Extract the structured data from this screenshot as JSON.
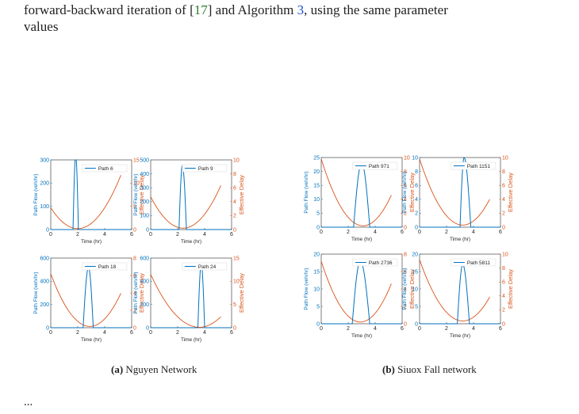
{
  "caption": {
    "line1_prefix": "forward-backward iteration of [",
    "ref": "17",
    "line1_mid": "] and Algorithm ",
    "algo_ref": "3",
    "line1_suffix": ", using the same parameter",
    "line2": "values"
  },
  "subcaptions": {
    "a_label": "(a)",
    "a_text": "Nguyen Network",
    "b_label": "(b)",
    "b_text": "Siuox Fall network"
  },
  "bottom_text": "...",
  "colors": {
    "flow": "#0072bd",
    "delay": "#d95319"
  },
  "chart_data": [
    {
      "type": "line",
      "legend": "Path 6",
      "xlabel": "Time (hr)",
      "ylabel_left": "Path Flow (veh/hr)",
      "ylabel_right": "Effective Delay",
      "xlim": [
        0,
        6
      ],
      "ylim_left": [
        0,
        300
      ],
      "ylim_right": [
        0,
        15
      ],
      "xticks": [
        0,
        2,
        4,
        6
      ],
      "yticks_left": [
        0,
        100,
        200,
        300
      ],
      "yticks_right": [
        0,
        5,
        10,
        15
      ],
      "flow": {
        "start": 1.65,
        "end": 2.05,
        "peak_x": 1.85,
        "peak": 320
      },
      "delay": {
        "x0": 0,
        "x1": 5.2,
        "vertex": 2.0,
        "min": 0.2,
        "y_at_0": 4.7
      }
    },
    {
      "type": "line",
      "legend": "Path 9",
      "xlabel": "Time (hr)",
      "ylabel_left": "Path Flow (veh/hr)",
      "ylabel_right": "Effective Delay",
      "xlim": [
        0,
        6
      ],
      "ylim_left": [
        0,
        500
      ],
      "ylim_right": [
        0,
        10
      ],
      "xticks": [
        0,
        2,
        4,
        6
      ],
      "yticks_left": [
        0,
        100,
        200,
        300,
        400,
        500
      ],
      "yticks_right": [
        0,
        2,
        4,
        6,
        8,
        10
      ],
      "flow": {
        "start": 2.1,
        "end": 2.65,
        "peak_x": 2.35,
        "peak": 460
      },
      "delay": {
        "x0": 0,
        "x1": 5.2,
        "vertex": 2.4,
        "min": 0.2,
        "y_at_0": 4.7
      }
    },
    {
      "type": "line",
      "legend": "Path 18",
      "xlabel": "Time (hr)",
      "ylabel_left": "Path Flow (veh/hr)",
      "ylabel_right": "Effective Delay",
      "xlim": [
        0,
        6
      ],
      "ylim_left": [
        0,
        600
      ],
      "ylim_right": [
        0,
        8
      ],
      "xticks": [
        0,
        2,
        4,
        6
      ],
      "yticks_left": [
        0,
        200,
        400,
        600
      ],
      "yticks_right": [
        0,
        2,
        4,
        6,
        8
      ],
      "flow": {
        "start": 2.4,
        "end": 3.15,
        "peak_x": 2.8,
        "peak": 520
      },
      "delay": {
        "x0": 0,
        "x1": 5.2,
        "vertex": 2.9,
        "min": 0.15,
        "y_at_0": 6.2
      }
    },
    {
      "type": "line",
      "legend": "Path 24",
      "xlabel": "Time (hr)",
      "ylabel_left": "Path Flow (veh/hr)",
      "ylabel_right": "Effective Delay",
      "xlim": [
        0,
        6
      ],
      "ylim_left": [
        0,
        600
      ],
      "ylim_right": [
        0,
        15
      ],
      "xticks": [
        0,
        2,
        4,
        6
      ],
      "yticks_left": [
        0,
        200,
        400,
        600
      ],
      "yticks_right": [
        0,
        5,
        10,
        15
      ],
      "flow": {
        "start": 3.5,
        "end": 4.0,
        "peak_x": 3.75,
        "peak": 550
      },
      "delay": {
        "x0": 0,
        "x1": 5.2,
        "vertex": 3.6,
        "min": 0.1,
        "y_at_0": 11.5
      }
    },
    {
      "type": "line",
      "legend": "Path 971",
      "xlabel": "Time (hr)",
      "ylabel_left": "Path Flow (veh/hr)",
      "ylabel_right": "Effective Delay",
      "xlim": [
        0,
        6
      ],
      "ylim_left": [
        0,
        25
      ],
      "ylim_right": [
        0,
        10
      ],
      "xticks": [
        0,
        2,
        4,
        6
      ],
      "yticks_left": [
        0,
        5,
        10,
        15,
        20,
        25
      ],
      "yticks_right": [
        0,
        2,
        4,
        6,
        8,
        10
      ],
      "flow": {
        "start": 2.4,
        "end": 3.6,
        "peak_x": 3.0,
        "peak": 23
      },
      "delay": {
        "x0": 0,
        "x1": 5.2,
        "vertex": 3.1,
        "min": 0.2,
        "y_at_0": 9.8
      }
    },
    {
      "type": "line",
      "legend": "Path 1151",
      "xlabel": "Time (hr)",
      "ylabel_left": "Path Flow (veh/hr)",
      "ylabel_right": "Effective Delay",
      "xlim": [
        0,
        6
      ],
      "ylim_left": [
        0,
        10
      ],
      "ylim_right": [
        0,
        10
      ],
      "xticks": [
        0,
        2,
        4,
        6
      ],
      "yticks_left": [
        0,
        2,
        4,
        6,
        8,
        10
      ],
      "yticks_right": [
        0,
        2,
        4,
        6,
        8,
        10
      ],
      "flow": {
        "start": 3.0,
        "end": 3.8,
        "peak_x": 3.3,
        "peak": 10
      },
      "delay": {
        "x0": 0,
        "x1": 5.2,
        "vertex": 3.2,
        "min": 0.3,
        "y_at_0": 9.8
      }
    },
    {
      "type": "line",
      "legend": "Path 2736",
      "xlabel": "Time (hr)",
      "ylabel_left": "Path Flow (veh/hr)",
      "ylabel_right": "Effective Delay",
      "xlim": [
        0,
        6
      ],
      "ylim_left": [
        0,
        20
      ],
      "ylim_right": [
        0,
        8
      ],
      "xticks": [
        0,
        2,
        4,
        6
      ],
      "yticks_left": [
        0,
        5,
        10,
        15,
        20
      ],
      "yticks_right": [
        0,
        2,
        4,
        6,
        8
      ],
      "flow": {
        "start": 2.3,
        "end": 3.6,
        "peak_x": 2.9,
        "peak": 18
      },
      "delay": {
        "x0": 0,
        "x1": 5.2,
        "vertex": 2.9,
        "min": 0.2,
        "y_at_0": 7.2
      }
    },
    {
      "type": "line",
      "legend": "Path 5811",
      "xlabel": "Time (hr)",
      "ylabel_left": "Path Flow (veh/hr)",
      "ylabel_right": "Effective Delay",
      "xlim": [
        0,
        6
      ],
      "ylim_left": [
        0,
        20
      ],
      "ylim_right": [
        0,
        10
      ],
      "xticks": [
        0,
        2,
        4,
        6
      ],
      "yticks_left": [
        0,
        5,
        10,
        15,
        20
      ],
      "yticks_right": [
        0,
        2,
        4,
        6,
        8,
        10
      ],
      "flow": {
        "start": 2.8,
        "end": 3.7,
        "peak_x": 3.2,
        "peak": 17
      },
      "delay": {
        "x0": 0,
        "x1": 5.2,
        "vertex": 3.2,
        "min": 0.4,
        "y_at_0": 9.2
      }
    }
  ]
}
